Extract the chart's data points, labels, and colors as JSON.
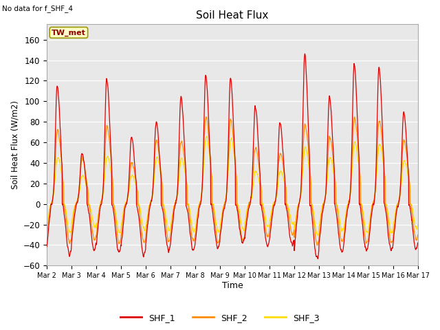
{
  "title": "Soil Heat Flux",
  "subtitle": "No data for f_SHF_4",
  "ylabel": "Soil Heat Flux (W/m2)",
  "xlabel": "Time",
  "legend_label": "TW_met",
  "ylim": [
    -60,
    175
  ],
  "yticks": [
    -60,
    -40,
    -20,
    0,
    20,
    40,
    60,
    80,
    100,
    120,
    140,
    160
  ],
  "series_labels": [
    "SHF_1",
    "SHF_2",
    "SHF_3"
  ],
  "series_colors": [
    "#dd0000",
    "#ff8c00",
    "#ffdd00"
  ],
  "fig_bg_color": "#ffffff",
  "plot_bg_color": "#e8e8e8",
  "grid_color": "#ffffff",
  "num_days": 15,
  "start_day": 2,
  "day_amplitudes_shf1": [
    115,
    50,
    122,
    65,
    80,
    105,
    125,
    122,
    95,
    80,
    145,
    105,
    137,
    133,
    90
  ],
  "day_amplitudes_shf2": [
    72,
    45,
    76,
    40,
    62,
    62,
    85,
    82,
    55,
    50,
    78,
    65,
    84,
    82,
    62
  ],
  "day_amplitudes_shf3": [
    46,
    28,
    47,
    28,
    45,
    44,
    65,
    64,
    32,
    32,
    55,
    45,
    60,
    59,
    42
  ],
  "neg_amp_shf1": [
    -50,
    -45,
    -47,
    -50,
    -45,
    -45,
    -43,
    -38,
    -40,
    -40,
    -53,
    -47,
    -45,
    -45,
    -43
  ],
  "neg_amp_shf2": [
    -38,
    -35,
    -38,
    -38,
    -36,
    -36,
    -38,
    -36,
    -32,
    -30,
    -40,
    -37,
    -38,
    -38,
    -35
  ],
  "neg_amp_shf3": [
    -28,
    -22,
    -28,
    -25,
    -26,
    -26,
    -28,
    -25,
    -22,
    -20,
    -30,
    -26,
    -28,
    -28,
    -24
  ]
}
